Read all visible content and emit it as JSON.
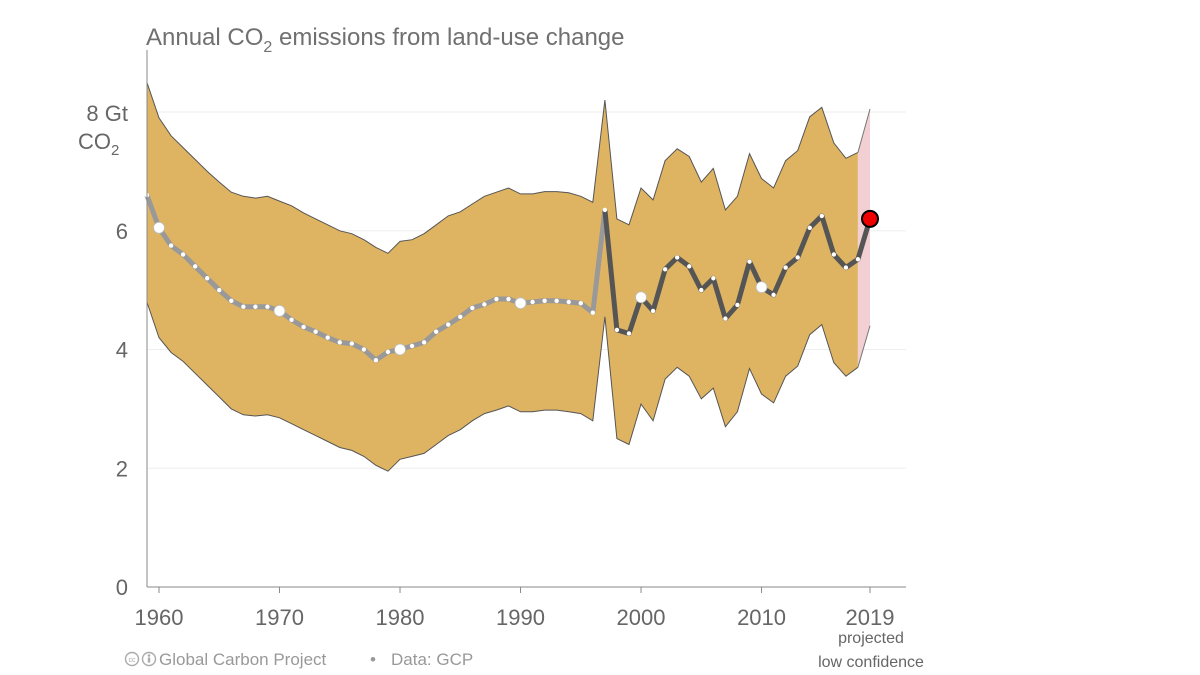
{
  "chart_data": {
    "type": "area",
    "title": "Annual CO",
    "title_subscript": "2",
    "title_suffix": " emissions from land-use change",
    "ylabel_line1": "8 Gt",
    "ylabel_line2": "CO",
    "ylabel_subscript": "2",
    "ylim": [
      0,
      9
    ],
    "xlim": [
      1959,
      2020
    ],
    "y_ticks": [
      "0",
      "2",
      "4",
      "6"
    ],
    "y_tick_values": [
      0,
      2,
      4,
      6
    ],
    "gridlines_at": [
      2,
      4,
      6,
      8
    ],
    "x_tick_values": [
      1960,
      1970,
      1980,
      1990,
      2000,
      2010,
      2019
    ],
    "x_ticks": [
      "1960",
      "1970",
      "1980",
      "1990",
      "2000",
      "2010",
      "2019"
    ],
    "grid": true,
    "colors": {
      "band": "#deb463",
      "projection_band": "#f1cfd3",
      "early_line": "#999999",
      "recent_line": "#555555",
      "projected_point": "#ee0000"
    },
    "series": [
      {
        "x": [
          1959,
          1960,
          1961,
          1962,
          1963,
          1964,
          1965,
          1966,
          1967,
          1968,
          1969,
          1970,
          1971,
          1972,
          1973,
          1974,
          1975,
          1976,
          1977,
          1978,
          1979,
          1980,
          1981,
          1982,
          1983,
          1984,
          1985,
          1986,
          1987,
          1988,
          1989,
          1990,
          1991,
          1992,
          1993,
          1994,
          1995,
          1996,
          1997,
          1998,
          1999,
          2000,
          2001,
          2002,
          2003,
          2004,
          2005,
          2006,
          2007,
          2008,
          2009,
          2010,
          2011,
          2012,
          2013,
          2014,
          2015,
          2016,
          2017,
          2018
        ],
        "values": [
          6.6,
          6.05,
          5.75,
          5.6,
          5.4,
          5.2,
          5.0,
          4.82,
          4.72,
          4.72,
          4.72,
          4.65,
          4.5,
          4.38,
          4.3,
          4.2,
          4.12,
          4.1,
          4.0,
          3.82,
          3.96,
          4.0,
          4.06,
          4.12,
          4.3,
          4.42,
          4.55,
          4.7,
          4.76,
          4.85,
          4.85,
          4.78,
          4.8,
          4.82,
          4.82,
          4.8,
          4.78,
          4.62,
          6.35,
          4.33,
          4.27,
          4.88,
          4.65,
          5.35,
          5.55,
          5.4,
          5.0,
          5.2,
          4.52,
          4.75,
          5.48,
          5.05,
          4.92,
          5.38,
          5.55,
          6.05,
          6.25,
          5.6,
          5.38,
          5.52
        ],
        "lower": [
          4.8,
          4.2,
          3.95,
          3.8,
          3.6,
          3.4,
          3.2,
          3.0,
          2.9,
          2.88,
          2.9,
          2.85,
          2.75,
          2.65,
          2.55,
          2.45,
          2.35,
          2.3,
          2.2,
          2.05,
          1.95,
          2.15,
          2.2,
          2.25,
          2.4,
          2.55,
          2.65,
          2.8,
          2.92,
          2.98,
          3.05,
          2.95,
          2.95,
          2.98,
          2.98,
          2.95,
          2.92,
          2.8,
          4.55,
          2.5,
          2.4,
          3.08,
          2.8,
          3.5,
          3.7,
          3.55,
          3.17,
          3.35,
          2.7,
          2.95,
          3.68,
          3.25,
          3.1,
          3.55,
          3.72,
          4.25,
          4.42,
          3.78,
          3.55,
          3.7
        ],
        "upper": [
          8.5,
          7.9,
          7.6,
          7.4,
          7.2,
          7.0,
          6.82,
          6.65,
          6.58,
          6.55,
          6.58,
          6.5,
          6.42,
          6.3,
          6.2,
          6.1,
          6.0,
          5.95,
          5.85,
          5.72,
          5.62,
          5.82,
          5.85,
          5.95,
          6.1,
          6.25,
          6.32,
          6.45,
          6.58,
          6.65,
          6.72,
          6.62,
          6.62,
          6.66,
          6.66,
          6.64,
          6.58,
          6.48,
          8.2,
          6.2,
          6.1,
          6.72,
          6.52,
          7.18,
          7.38,
          7.25,
          6.82,
          7.05,
          6.35,
          6.58,
          7.3,
          6.88,
          6.72,
          7.18,
          7.35,
          7.92,
          8.08,
          7.48,
          7.22,
          7.32
        ]
      }
    ],
    "projection": {
      "x": 2019,
      "value": 6.2,
      "lower": 4.4,
      "upper": 8.05
    },
    "annotations": {
      "projected": "projected",
      "low_confidence": "low confidence"
    }
  },
  "footer": {
    "source": "Global Carbon Project",
    "separator": "•",
    "data": "Data: GCP"
  }
}
